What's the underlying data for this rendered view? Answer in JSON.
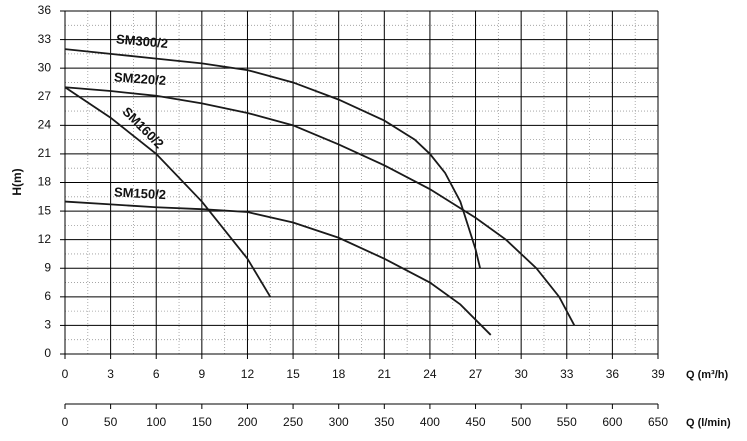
{
  "chart_data": {
    "type": "line",
    "ylabel": "H(m)",
    "xlabel": "Q (m³/h)",
    "x2label": "Q (l/min)",
    "xlim": [
      0,
      39
    ],
    "xticks": [
      0,
      3,
      6,
      9,
      12,
      15,
      18,
      21,
      24,
      27,
      30,
      33,
      36,
      39
    ],
    "ylim": [
      0,
      36
    ],
    "yticks": [
      0,
      3,
      6,
      9,
      12,
      15,
      18,
      21,
      24,
      27,
      30,
      33,
      36
    ],
    "x2lim": [
      0,
      650
    ],
    "x2ticks": [
      0,
      50,
      100,
      150,
      200,
      250,
      300,
      350,
      400,
      450,
      500,
      550,
      600,
      650
    ],
    "grid": true,
    "minor_grid": true,
    "series": [
      {
        "name": "SM300/2",
        "color": "#1a1a1a",
        "x": [
          0,
          3,
          6,
          9,
          12,
          15,
          18,
          21,
          23,
          24,
          25,
          26,
          27,
          27.3
        ],
        "values": [
          32,
          31.5,
          31,
          30.5,
          29.8,
          28.5,
          26.7,
          24.5,
          22.5,
          21,
          19,
          16,
          11,
          9
        ]
      },
      {
        "name": "SM220/2",
        "color": "#1a1a1a",
        "x": [
          0,
          3,
          6,
          9,
          12,
          15,
          18,
          21,
          24,
          27,
          29,
          31,
          32.5,
          33.5
        ],
        "values": [
          28,
          27.6,
          27.1,
          26.3,
          25.3,
          24,
          22,
          19.8,
          17.3,
          14.3,
          12,
          9,
          6,
          3
        ]
      },
      {
        "name": "SM160/2",
        "color": "#1a1a1a",
        "x": [
          0,
          3,
          6,
          9,
          12,
          13.5
        ],
        "values": [
          28,
          24.8,
          21,
          16,
          10,
          6
        ]
      },
      {
        "name": "SM150/2",
        "color": "#1a1a1a",
        "x": [
          0,
          3,
          6,
          9,
          12,
          15,
          18,
          21,
          24,
          26,
          28
        ],
        "values": [
          16,
          15.7,
          15.4,
          15.2,
          14.9,
          13.8,
          12.2,
          10,
          7.5,
          5.2,
          2
        ]
      }
    ]
  }
}
